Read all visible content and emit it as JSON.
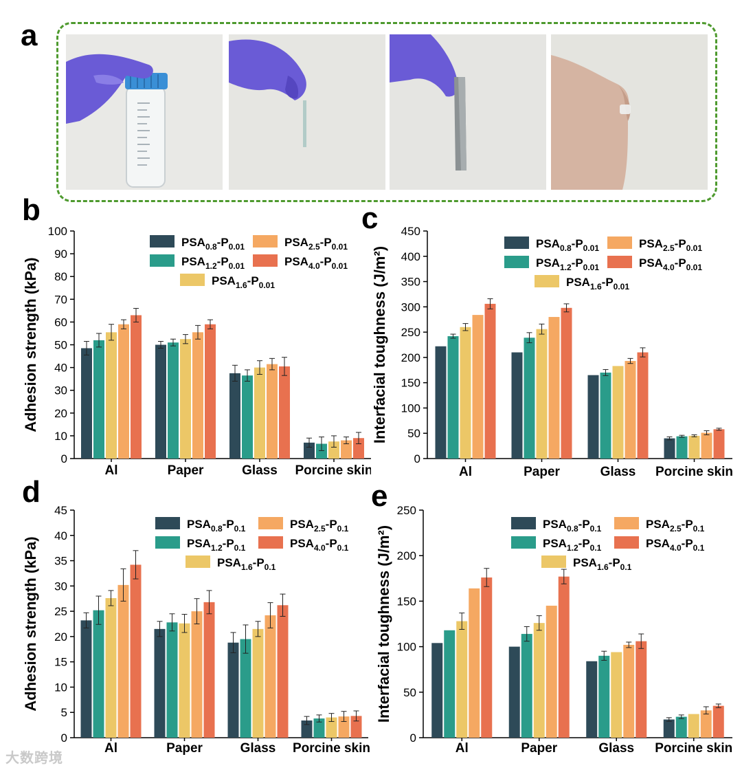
{
  "panels": {
    "a": "a",
    "b": "b",
    "c": "c",
    "d": "d",
    "e": "e"
  },
  "colors": [
    "#2e4a58",
    "#2a9c8a",
    "#ecc767",
    "#f5a862",
    "#e8714f"
  ],
  "photos": [
    {
      "name": "tube-photo",
      "desc": "gloved hand holding centrifuge tube"
    },
    {
      "name": "glass-slide-photo",
      "desc": "gloved hand holding thin glass slide"
    },
    {
      "name": "metal-strip-photo",
      "desc": "gloved hand holding metal strip"
    },
    {
      "name": "skin-photo",
      "desc": "bent arm with adhesive patch"
    }
  ],
  "watermark": "大数跨境",
  "chart_data": [
    {
      "id": "b",
      "type": "bar",
      "categories": [
        "Al",
        "Paper",
        "Glass",
        "Porcine skin"
      ],
      "ylabel": "Adhesion strength (kPa)",
      "xlabel": "",
      "ylim": [
        0,
        100
      ],
      "yticks": [
        0,
        10,
        20,
        30,
        40,
        50,
        60,
        70,
        80,
        90,
        100
      ],
      "legend": [
        {
          "base": "PSA",
          "sub1": "0.8",
          "mid": "-P",
          "sub2": "0.01"
        },
        {
          "base": "PSA",
          "sub1": "1.2",
          "mid": "-P",
          "sub2": "0.01"
        },
        {
          "base": "PSA",
          "sub1": "1.6",
          "mid": "-P",
          "sub2": "0.01"
        },
        {
          "base": "PSA",
          "sub1": "2.5",
          "mid": "-P",
          "sub2": "0.01"
        },
        {
          "base": "PSA",
          "sub1": "4.0",
          "mid": "-P",
          "sub2": "0.01"
        }
      ],
      "series": [
        {
          "name": "PSA0.8-P0.01",
          "values": [
            48.5,
            50,
            37.5,
            7
          ],
          "errors": [
            3,
            1.5,
            3.5,
            2
          ]
        },
        {
          "name": "PSA1.2-P0.01",
          "values": [
            52,
            51,
            36.5,
            6.5
          ],
          "errors": [
            3,
            1.5,
            2.5,
            3
          ]
        },
        {
          "name": "PSA1.6-P0.01",
          "values": [
            55.5,
            52.5,
            40,
            7.5
          ],
          "errors": [
            3.5,
            2,
            3,
            2.5
          ]
        },
        {
          "name": "PSA2.5-P0.01",
          "values": [
            59,
            55.5,
            41.5,
            8
          ],
          "errors": [
            2,
            3,
            2.5,
            1.5
          ]
        },
        {
          "name": "PSA4.0-P0.01",
          "values": [
            63,
            59,
            40.5,
            9
          ],
          "errors": [
            3,
            2,
            4,
            2.5
          ]
        }
      ]
    },
    {
      "id": "c",
      "type": "bar",
      "categories": [
        "Al",
        "Paper",
        "Glass",
        "Porcine skin"
      ],
      "ylabel": "Interfacial toughness (J/m²)",
      "xlabel": "",
      "ylim": [
        0,
        450
      ],
      "yticks": [
        0,
        50,
        100,
        150,
        200,
        250,
        300,
        350,
        400,
        450
      ],
      "legend": [
        {
          "base": "PSA",
          "sub1": "0.8",
          "mid": "-P",
          "sub2": "0.01"
        },
        {
          "base": "PSA",
          "sub1": "1.2",
          "mid": "-P",
          "sub2": "0.01"
        },
        {
          "base": "PSA",
          "sub1": "1.6",
          "mid": "-P",
          "sub2": "0.01"
        },
        {
          "base": "PSA",
          "sub1": "2.5",
          "mid": "-P",
          "sub2": "0.01"
        },
        {
          "base": "PSA",
          "sub1": "4.0",
          "mid": "-P",
          "sub2": "0.01"
        }
      ],
      "series": [
        {
          "name": "PSA0.8-P0.01",
          "values": [
            222,
            210,
            165,
            40
          ],
          "errors": [
            0,
            0,
            0,
            3
          ]
        },
        {
          "name": "PSA1.2-P0.01",
          "values": [
            242,
            239,
            170,
            44
          ],
          "errors": [
            4,
            10,
            6,
            2
          ]
        },
        {
          "name": "PSA1.6-P0.01",
          "values": [
            260,
            256,
            183,
            45
          ],
          "errors": [
            7,
            10,
            0,
            2
          ]
        },
        {
          "name": "PSA2.5-P0.01",
          "values": [
            284,
            280,
            193,
            51
          ],
          "errors": [
            0,
            0,
            5,
            4
          ]
        },
        {
          "name": "PSA4.0-P0.01",
          "values": [
            306,
            298,
            210,
            58
          ],
          "errors": [
            10,
            8,
            9,
            2
          ]
        }
      ]
    },
    {
      "id": "d",
      "type": "bar",
      "categories": [
        "Al",
        "Paper",
        "Glass",
        "Porcine skin"
      ],
      "ylabel": "Adhesion strength (kPa)",
      "xlabel": "",
      "ylim": [
        0,
        45
      ],
      "yticks": [
        0,
        5,
        10,
        15,
        20,
        25,
        30,
        35,
        40,
        45
      ],
      "legend": [
        {
          "base": "PSA",
          "sub1": "0.8",
          "mid": "-P",
          "sub2": "0.1"
        },
        {
          "base": "PSA",
          "sub1": "1.2",
          "mid": "-P",
          "sub2": "0.1"
        },
        {
          "base": "PSA",
          "sub1": "1.6",
          "mid": "-P",
          "sub2": "0.1"
        },
        {
          "base": "PSA",
          "sub1": "2.5",
          "mid": "-P",
          "sub2": "0.1"
        },
        {
          "base": "PSA",
          "sub1": "4.0",
          "mid": "-P",
          "sub2": "0.1"
        }
      ],
      "series": [
        {
          "name": "PSA0.8-P0.1",
          "values": [
            23.2,
            21.5,
            18.8,
            3.4
          ],
          "errors": [
            1.5,
            1.5,
            2,
            0.8
          ]
        },
        {
          "name": "PSA1.2-P0.1",
          "values": [
            25.2,
            22.8,
            19.5,
            3.8
          ],
          "errors": [
            2.8,
            1.7,
            2.8,
            0.7
          ]
        },
        {
          "name": "PSA1.6-P0.1",
          "values": [
            27.6,
            22.6,
            21.5,
            4
          ],
          "errors": [
            1.5,
            1.8,
            1.5,
            0.8
          ]
        },
        {
          "name": "PSA2.5-P0.1",
          "values": [
            30.2,
            25,
            24.2,
            4.2
          ],
          "errors": [
            3.2,
            2.5,
            2.5,
            1
          ]
        },
        {
          "name": "PSA4.0-P0.1",
          "values": [
            34.2,
            26.8,
            26.2,
            4.3
          ],
          "errors": [
            2.8,
            2.3,
            2.2,
            1
          ]
        }
      ]
    },
    {
      "id": "e",
      "type": "bar",
      "categories": [
        "Al",
        "Paper",
        "Glass",
        "Porcine skin"
      ],
      "ylabel": "Interfacial toughness (J/m²)",
      "xlabel": "",
      "ylim": [
        0,
        250
      ],
      "yticks": [
        0,
        50,
        100,
        150,
        200,
        250
      ],
      "legend": [
        {
          "base": "PSA",
          "sub1": "0.8",
          "mid": "-P",
          "sub2": "0.1"
        },
        {
          "base": "PSA",
          "sub1": "1.2",
          "mid": "-P",
          "sub2": "0.1"
        },
        {
          "base": "PSA",
          "sub1": "1.6",
          "mid": "-P",
          "sub2": "0.1"
        },
        {
          "base": "PSA",
          "sub1": "2.5",
          "mid": "-P",
          "sub2": "0.1"
        },
        {
          "base": "PSA",
          "sub1": "4.0",
          "mid": "-P",
          "sub2": "0.1"
        }
      ],
      "series": [
        {
          "name": "PSA0.8-P0.1",
          "values": [
            104,
            100,
            84,
            20
          ],
          "errors": [
            0,
            0,
            0,
            2
          ]
        },
        {
          "name": "PSA1.2-P0.1",
          "values": [
            118,
            114,
            90,
            23
          ],
          "errors": [
            0,
            8,
            5,
            2
          ]
        },
        {
          "name": "PSA1.6-P0.1",
          "values": [
            128,
            126,
            94,
            26
          ],
          "errors": [
            9,
            8,
            0,
            0
          ]
        },
        {
          "name": "PSA2.5-P0.1",
          "values": [
            164,
            145,
            102,
            30
          ],
          "errors": [
            0,
            0,
            3,
            4
          ]
        },
        {
          "name": "PSA4.0-P0.1",
          "values": [
            176,
            177,
            106,
            35
          ],
          "errors": [
            10,
            8,
            8,
            2
          ]
        }
      ]
    }
  ]
}
